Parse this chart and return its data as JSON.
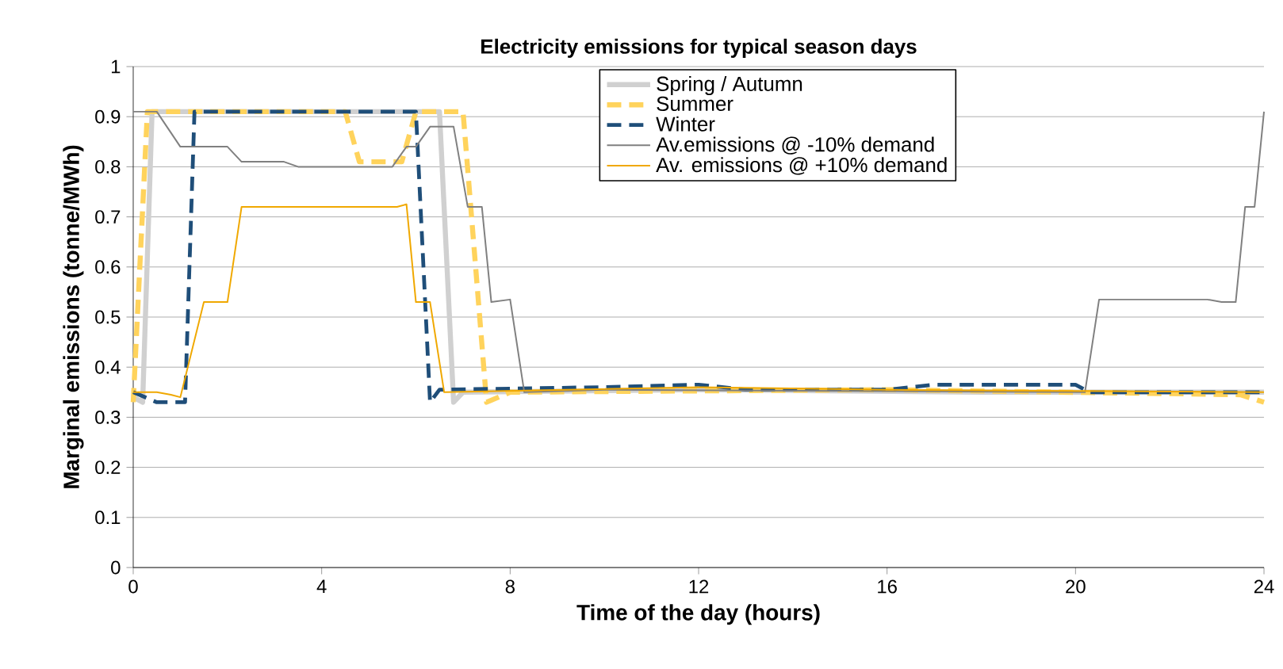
{
  "chart_data": {
    "type": "line",
    "title": "Electricity emissions for typical season days",
    "xlabel": "Time of the day (hours)",
    "ylabel": "Marginal emissions (tonne/MWh)",
    "xlim": [
      0,
      24
    ],
    "xticks": [
      0,
      4,
      8,
      12,
      16,
      20,
      24
    ],
    "ylim": [
      0,
      1
    ],
    "yticks": [
      0,
      0.1,
      0.2,
      0.3,
      0.4,
      0.5,
      0.6,
      0.7,
      0.8,
      0.9,
      1
    ],
    "grid": "y",
    "legend": "top",
    "marker": "none",
    "series": [
      {
        "name": "Spring / Autumn",
        "color": "#d0d0d0",
        "line_style": "solid",
        "x": [
          0,
          0.2,
          0.4,
          6.5,
          6.8,
          7.0,
          12,
          18,
          24
        ],
        "values": [
          0.34,
          0.33,
          0.91,
          0.91,
          0.33,
          0.35,
          0.355,
          0.35,
          0.35
        ]
      },
      {
        "name": "Summer",
        "color": "#ffd35c",
        "line_style": "dashed",
        "x": [
          0,
          0.3,
          4.5,
          4.8,
          5.7,
          6.0,
          7.0,
          7.5,
          8,
          16,
          23.5,
          24
        ],
        "values": [
          0.33,
          0.91,
          0.91,
          0.81,
          0.81,
          0.91,
          0.91,
          0.33,
          0.35,
          0.355,
          0.345,
          0.33
        ]
      },
      {
        "name": "Winter",
        "color": "#1f4e79",
        "line_style": "dashed",
        "x": [
          0,
          0.5,
          1.1,
          1.3,
          6.0,
          6.3,
          6.5,
          10,
          12,
          13,
          16,
          17,
          20,
          20.3,
          24
        ],
        "values": [
          0.35,
          0.33,
          0.33,
          0.91,
          0.91,
          0.33,
          0.355,
          0.36,
          0.365,
          0.355,
          0.355,
          0.365,
          0.365,
          0.35,
          0.35
        ]
      },
      {
        "name": "Av.emissions @ -10% demand",
        "color": "#808080",
        "line_style": "solid",
        "x": [
          0,
          0.5,
          1,
          2,
          2.3,
          3.2,
          3.5,
          5.5,
          5.8,
          6,
          6.3,
          6.8,
          7.1,
          7.4,
          7.6,
          8,
          8.3,
          10,
          20.2,
          20.5,
          22.8,
          23.1,
          23.4,
          23.6,
          23.8,
          24
        ],
        "values": [
          0.91,
          0.91,
          0.84,
          0.84,
          0.81,
          0.81,
          0.8,
          0.8,
          0.84,
          0.84,
          0.88,
          0.88,
          0.72,
          0.72,
          0.53,
          0.535,
          0.35,
          0.355,
          0.35,
          0.535,
          0.535,
          0.53,
          0.53,
          0.72,
          0.72,
          0.91
        ]
      },
      {
        "name": "Av. emissions @ +10% demand",
        "color": "#f0a800",
        "line_style": "solid",
        "x": [
          0,
          0.5,
          0.8,
          1.0,
          1.5,
          2.0,
          2.3,
          2.5,
          5.6,
          5.8,
          6.0,
          6.3,
          6.6,
          12,
          16,
          24
        ],
        "values": [
          0.35,
          0.35,
          0.345,
          0.34,
          0.53,
          0.53,
          0.72,
          0.72,
          0.72,
          0.725,
          0.53,
          0.53,
          0.35,
          0.36,
          0.355,
          0.35
        ]
      }
    ]
  }
}
